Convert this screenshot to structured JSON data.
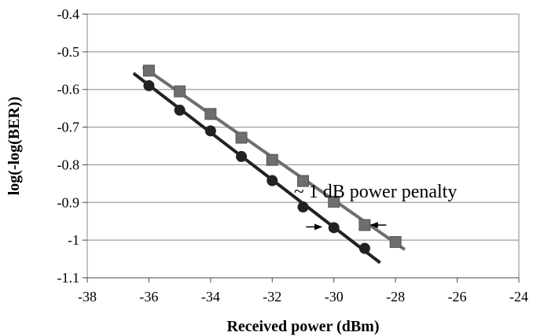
{
  "chart_data": {
    "type": "scatter",
    "title": "",
    "xlabel": "Received power (dBm)",
    "ylabel": "log(-log(BER))",
    "xlim": [
      -38,
      -24
    ],
    "ylim": [
      -1.1,
      -0.4
    ],
    "x_ticks": [
      -38,
      -36,
      -34,
      -32,
      -30,
      -28,
      -26,
      -24
    ],
    "y_ticks": [
      -0.4,
      -0.5,
      -0.6,
      -0.7,
      -0.8,
      -0.9,
      -1,
      -1.1
    ],
    "x_tick_labels": [
      "-38",
      "-36",
      "-34",
      "-32",
      "-30",
      "-28",
      "-26",
      "-24"
    ],
    "y_tick_labels": [
      "-0.4",
      "-0.5",
      "-0.6",
      "-0.7",
      "-0.8",
      "-0.9",
      "-1",
      "-1.1"
    ],
    "grid": "horizontal",
    "legend": "none",
    "series": [
      {
        "marker": "square",
        "color": "#6e6e6e",
        "x": [
          -36,
          -35,
          -34,
          -33,
          -32,
          -31,
          -30,
          -29,
          -28
        ],
        "y": [
          -0.55,
          -0.605,
          -0.665,
          -0.728,
          -0.787,
          -0.843,
          -0.898,
          -0.96,
          -1.005
        ],
        "fit": [
          [
            -36.2,
            -0.54
          ],
          [
            -27.7,
            -1.025
          ]
        ]
      },
      {
        "marker": "circle",
        "color": "#222222",
        "x": [
          -36,
          -35,
          -34,
          -33,
          -32,
          -31,
          -30,
          -29
        ],
        "y": [
          -0.59,
          -0.655,
          -0.71,
          -0.778,
          -0.842,
          -0.912,
          -0.967,
          -1.022
        ],
        "fit": [
          [
            -36.5,
            -0.557
          ],
          [
            -28.5,
            -1.06
          ]
        ]
      }
    ],
    "annotations": [
      {
        "text": "~ 1 dB power penalty",
        "x": -31.3,
        "y": -0.87
      }
    ],
    "arrows": [
      {
        "from": [
          -30.9,
          -0.965
        ],
        "to": [
          -30.4,
          -0.965
        ]
      },
      {
        "from": [
          -28.3,
          -0.96
        ],
        "to": [
          -28.8,
          -0.96
        ]
      }
    ]
  }
}
